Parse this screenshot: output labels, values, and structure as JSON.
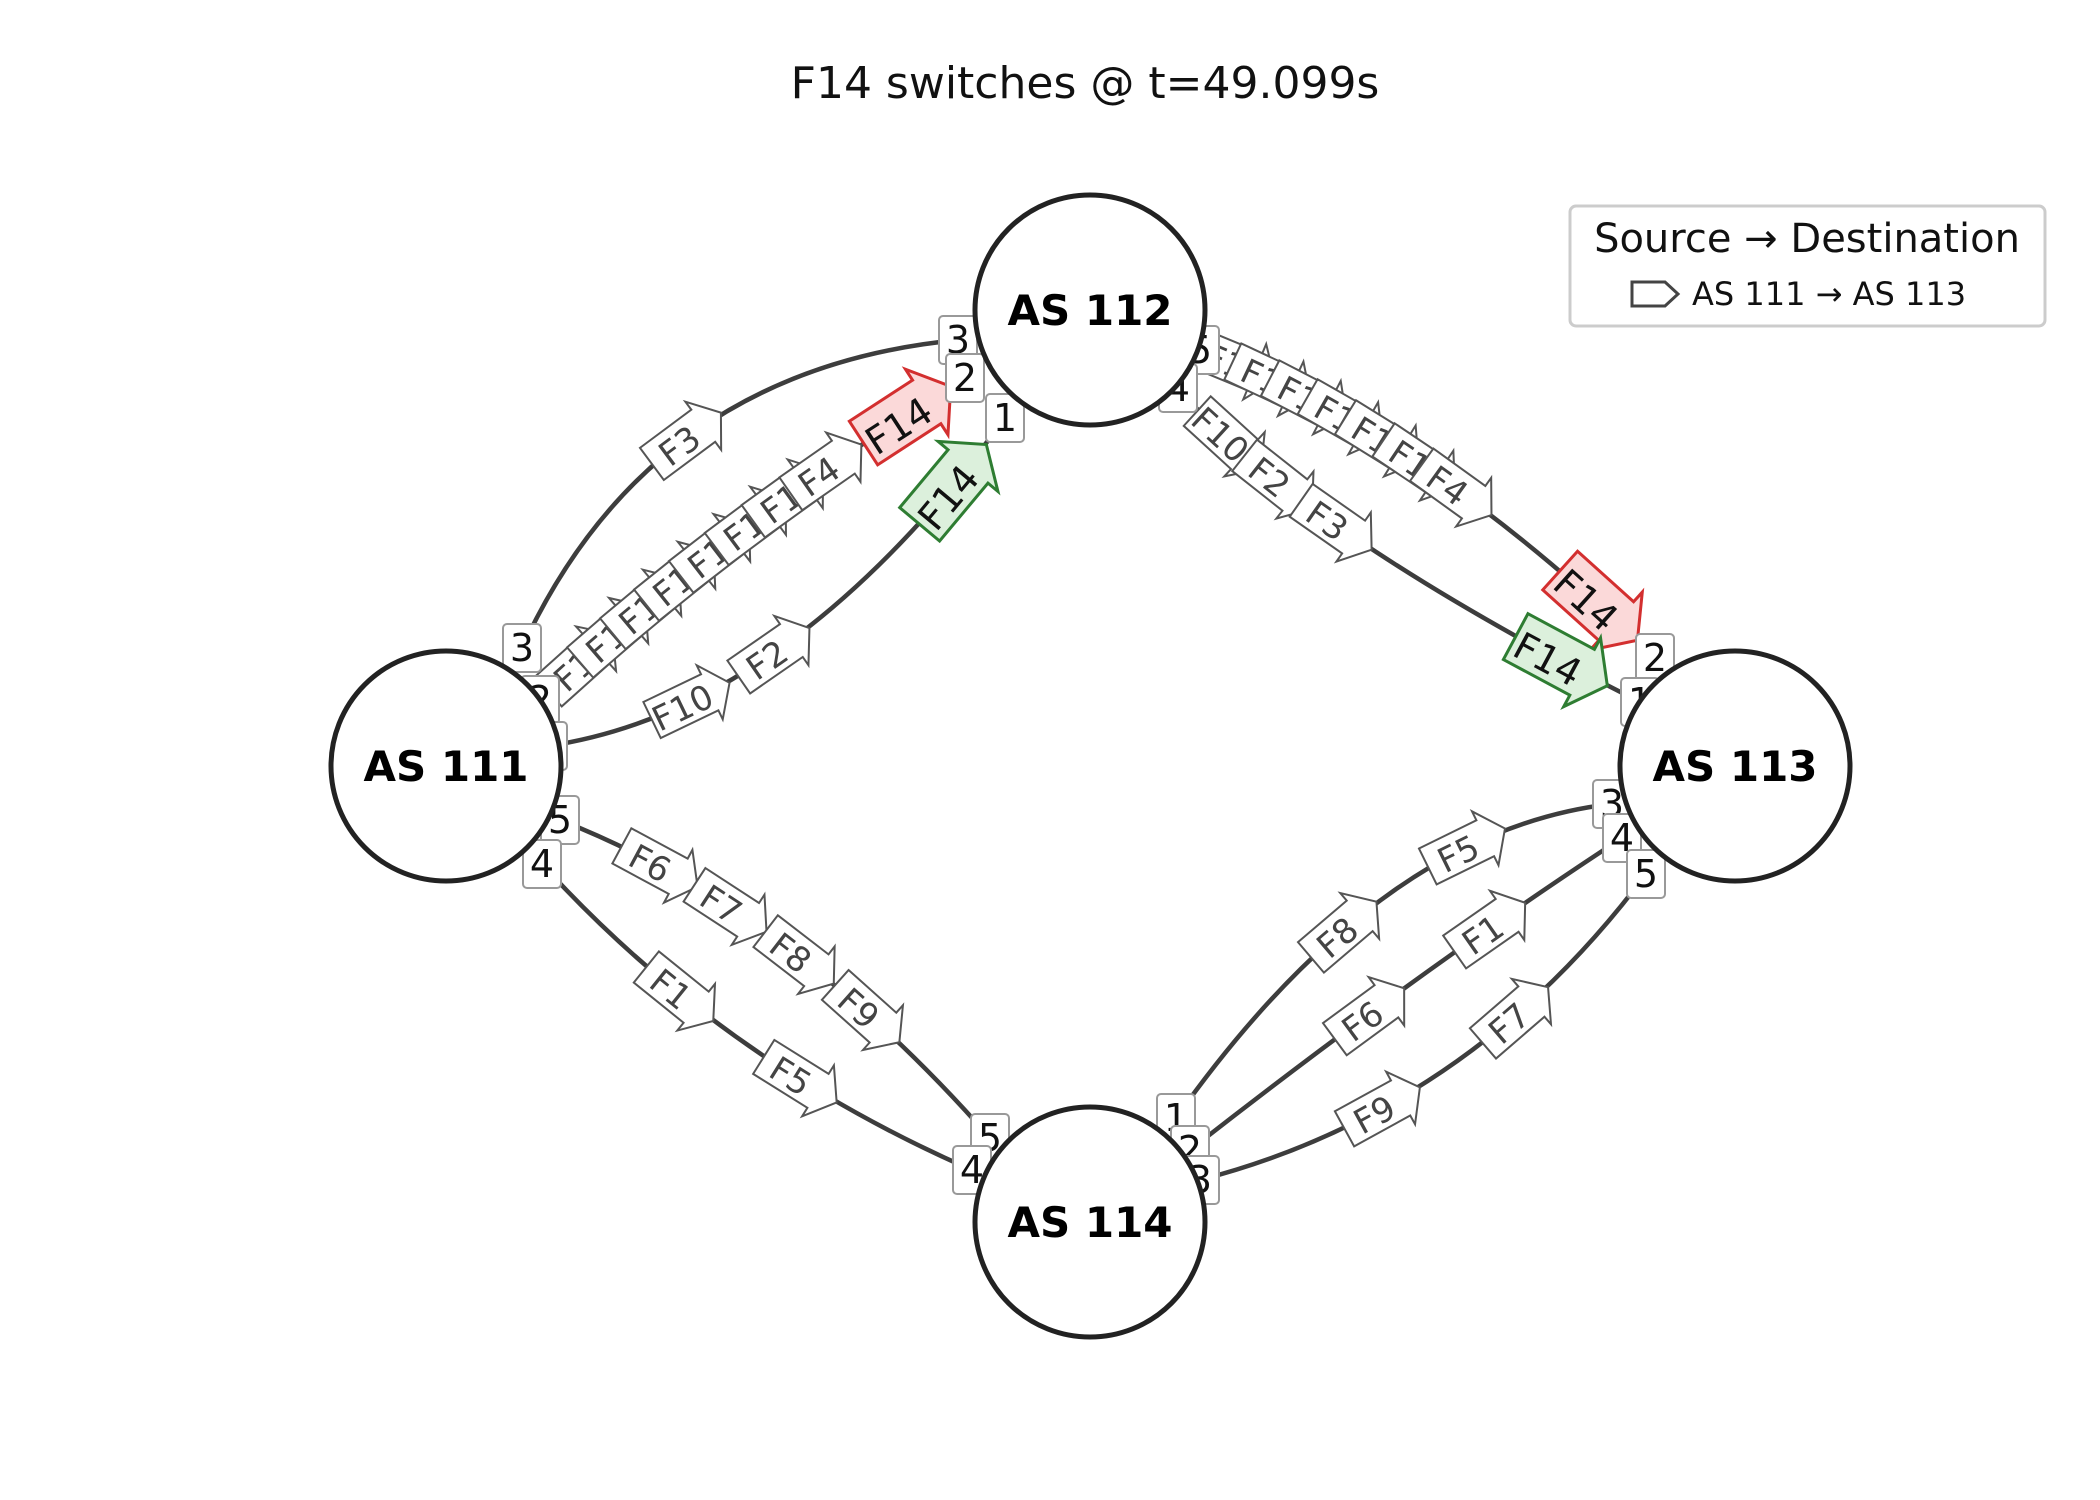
{
  "title": "F14 switches @ t=49.099s",
  "legend": {
    "title": "Source → Destination",
    "entry": "AS 111 → AS 113",
    "entry_icon": "outline-arrow-icon"
  },
  "colors": {
    "edge": "#3d3d3d",
    "node_stroke": "#222222",
    "flow_stroke": "#555555",
    "old_path_stroke": "#d32f2f",
    "old_path_fill": "#fbd9d9",
    "new_path_stroke": "#2e7d32",
    "new_path_fill": "#dcf0dc"
  },
  "nodes": [
    {
      "id": "AS111",
      "label": "AS 111"
    },
    {
      "id": "AS112",
      "label": "AS 112"
    },
    {
      "id": "AS113",
      "label": "AS 113"
    },
    {
      "id": "AS114",
      "label": "AS 114"
    }
  ],
  "links": [
    {
      "from": "AS111",
      "from_port": "3",
      "to": "AS112",
      "to_port": "3",
      "flows": [
        "F3"
      ]
    },
    {
      "from": "AS111",
      "from_port": "2",
      "to": "AS112",
      "to_port": "2",
      "flows": [
        "F1",
        "F1",
        "F1",
        "F1",
        "F1",
        "F1",
        "F1",
        "F4"
      ],
      "highlight": {
        "label": "F14",
        "status": "old"
      }
    },
    {
      "from": "AS111",
      "from_port": "1",
      "to": "AS112",
      "to_port": "1",
      "flows": [
        "F10",
        "F2"
      ],
      "highlight": {
        "label": "F14",
        "status": "new"
      }
    },
    {
      "from": "AS112",
      "from_port": "5",
      "to": "AS113",
      "to_port": "2",
      "flows": [
        "F1",
        "F1",
        "F1",
        "F1",
        "F1",
        "F1",
        "F4"
      ],
      "highlight": {
        "label": "F14",
        "status": "old"
      }
    },
    {
      "from": "AS112",
      "from_port": "4",
      "to": "AS113",
      "to_port": "1",
      "flows": [
        "F10",
        "F2",
        "F3"
      ],
      "highlight": {
        "label": "F14",
        "status": "new"
      }
    },
    {
      "from": "AS111",
      "from_port": "5",
      "to": "AS114",
      "to_port": "5",
      "flows": [
        "F6",
        "F7",
        "F8",
        "F9"
      ]
    },
    {
      "from": "AS111",
      "from_port": "4",
      "to": "AS114",
      "to_port": "4",
      "flows": [
        "F1",
        "F5"
      ]
    },
    {
      "from": "AS114",
      "from_port": "1",
      "to": "AS113",
      "to_port": "3",
      "flows": [
        "F8",
        "F5"
      ]
    },
    {
      "from": "AS114",
      "from_port": "2",
      "to": "AS113",
      "to_port": "4",
      "flows": [
        "F6",
        "F1"
      ]
    },
    {
      "from": "AS114",
      "from_port": "3",
      "to": "AS113",
      "to_port": "5",
      "flows": [
        "F9",
        "F7"
      ]
    }
  ]
}
